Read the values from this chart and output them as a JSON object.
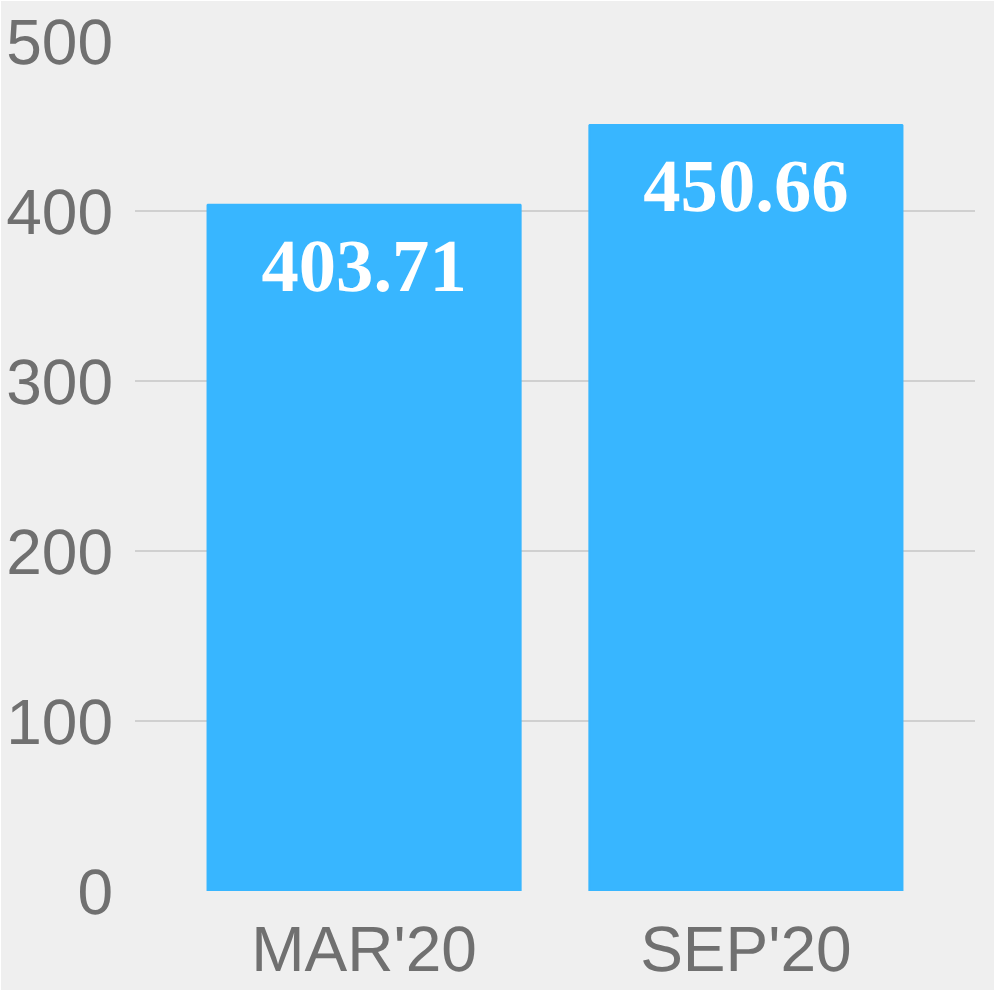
{
  "chart_data": {
    "type": "bar",
    "categories": [
      "MAR'20",
      "SEP'20"
    ],
    "values": [
      403.71,
      450.66
    ],
    "color": "#38b6ff",
    "ylim": [
      0,
      500
    ],
    "yticks": [
      0,
      100,
      200,
      300,
      400,
      500
    ],
    "grid": "y",
    "data_labels": true
  }
}
